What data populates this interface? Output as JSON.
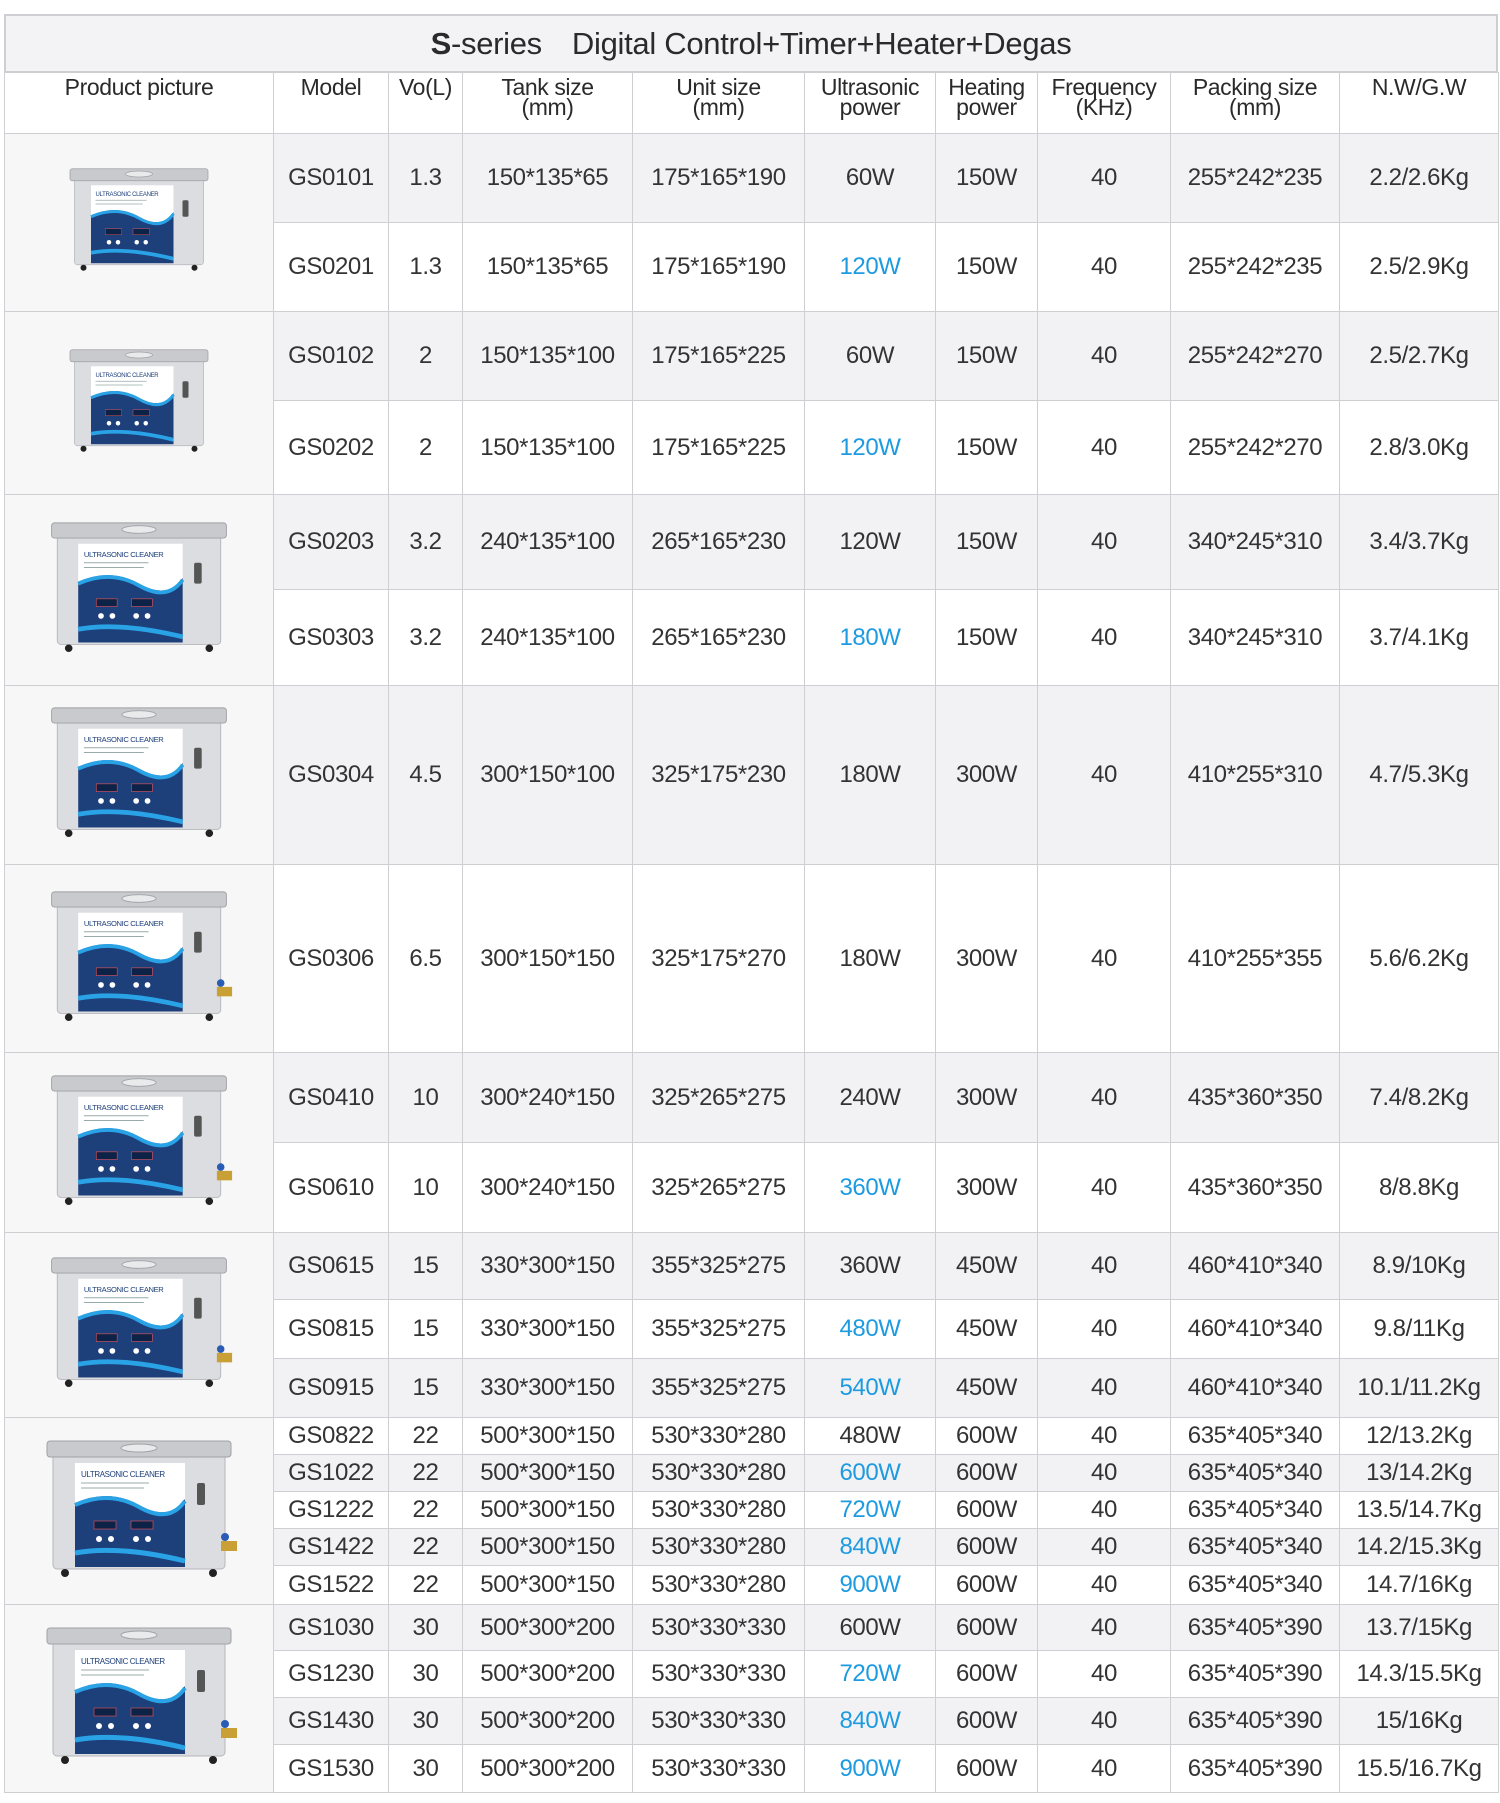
{
  "title": {
    "bold": "S",
    "rest": "-series",
    "subtitle": "Digital Control+Timer+Heater+Degas"
  },
  "headers": [
    {
      "l1": "Product picture",
      "l2": ""
    },
    {
      "l1": "Model",
      "l2": ""
    },
    {
      "l1": "Vo(L)",
      "l2": ""
    },
    {
      "l1": "Tank size",
      "l2": "(mm)"
    },
    {
      "l1": "Unit size",
      "l2": "(mm)"
    },
    {
      "l1": "Ultrasonic",
      "l2": "power"
    },
    {
      "l1": "Heating",
      "l2": "power"
    },
    {
      "l1": "Frequency",
      "l2": "(KHz)"
    },
    {
      "l1": "Packing size",
      "l2": "(mm)"
    },
    {
      "l1": "N.W/G.W",
      "l2": ""
    }
  ],
  "highlight_color": "#1e9be0",
  "product_image_label": "ULTRASONIC CLEANER",
  "groups": [
    {
      "rows": [
        {
          "model": "GS0101",
          "vol": "1.3",
          "tank": "150*135*65",
          "unit": "175*165*190",
          "power": "60W",
          "highlight": false,
          "heat": "150W",
          "freq": "40",
          "pack": "255*242*235",
          "weight": "2.2/2.6Kg"
        },
        {
          "model": "GS0201",
          "vol": "1.3",
          "tank": "150*135*65",
          "unit": "175*165*190",
          "power": "120W",
          "highlight": true,
          "heat": "150W",
          "freq": "40",
          "pack": "255*242*235",
          "weight": "2.5/2.9Kg"
        }
      ]
    },
    {
      "rows": [
        {
          "model": "GS0102",
          "vol": "2",
          "tank": "150*135*100",
          "unit": "175*165*225",
          "power": "60W",
          "highlight": false,
          "heat": "150W",
          "freq": "40",
          "pack": "255*242*270",
          "weight": "2.5/2.7Kg"
        },
        {
          "model": "GS0202",
          "vol": "2",
          "tank": "150*135*100",
          "unit": "175*165*225",
          "power": "120W",
          "highlight": true,
          "heat": "150W",
          "freq": "40",
          "pack": "255*242*270",
          "weight": "2.8/3.0Kg"
        }
      ]
    },
    {
      "rows": [
        {
          "model": "GS0203",
          "vol": "3.2",
          "tank": "240*135*100",
          "unit": "265*165*230",
          "power": "120W",
          "highlight": false,
          "heat": "150W",
          "freq": "40",
          "pack": "340*245*310",
          "weight": "3.4/3.7Kg"
        },
        {
          "model": "GS0303",
          "vol": "3.2",
          "tank": "240*135*100",
          "unit": "265*165*230",
          "power": "180W",
          "highlight": true,
          "heat": "150W",
          "freq": "40",
          "pack": "340*245*310",
          "weight": "3.7/4.1Kg"
        }
      ]
    },
    {
      "rows": [
        {
          "model": "GS0304",
          "vol": "4.5",
          "tank": "300*150*100",
          "unit": "325*175*230",
          "power": "180W",
          "highlight": false,
          "heat": "300W",
          "freq": "40",
          "pack": "410*255*310",
          "weight": "4.7/5.3Kg"
        }
      ]
    },
    {
      "rows": [
        {
          "model": "GS0306",
          "vol": "6.5",
          "tank": "300*150*150",
          "unit": "325*175*270",
          "power": "180W",
          "highlight": false,
          "heat": "300W",
          "freq": "40",
          "pack": "410*255*355",
          "weight": "5.6/6.2Kg"
        }
      ]
    },
    {
      "rows": [
        {
          "model": "GS0410",
          "vol": "10",
          "tank": "300*240*150",
          "unit": "325*265*275",
          "power": "240W",
          "highlight": false,
          "heat": "300W",
          "freq": "40",
          "pack": "435*360*350",
          "weight": "7.4/8.2Kg"
        },
        {
          "model": "GS0610",
          "vol": "10",
          "tank": "300*240*150",
          "unit": "325*265*275",
          "power": "360W",
          "highlight": true,
          "heat": "300W",
          "freq": "40",
          "pack": "435*360*350",
          "weight": "8/8.8Kg"
        }
      ]
    },
    {
      "rows": [
        {
          "model": "GS0615",
          "vol": "15",
          "tank": "330*300*150",
          "unit": "355*325*275",
          "power": "360W",
          "highlight": false,
          "heat": "450W",
          "freq": "40",
          "pack": "460*410*340",
          "weight": "8.9/10Kg"
        },
        {
          "model": "GS0815",
          "vol": "15",
          "tank": "330*300*150",
          "unit": "355*325*275",
          "power": "480W",
          "highlight": true,
          "heat": "450W",
          "freq": "40",
          "pack": "460*410*340",
          "weight": "9.8/11Kg"
        },
        {
          "model": "GS0915",
          "vol": "15",
          "tank": "330*300*150",
          "unit": "355*325*275",
          "power": "540W",
          "highlight": true,
          "heat": "450W",
          "freq": "40",
          "pack": "460*410*340",
          "weight": "10.1/11.2Kg"
        }
      ]
    },
    {
      "rows": [
        {
          "model": "GS0822",
          "vol": "22",
          "tank": "500*300*150",
          "unit": "530*330*280",
          "power": "480W",
          "highlight": false,
          "heat": "600W",
          "freq": "40",
          "pack": "635*405*340",
          "weight": "12/13.2Kg"
        },
        {
          "model": "GS1022",
          "vol": "22",
          "tank": "500*300*150",
          "unit": "530*330*280",
          "power": "600W",
          "highlight": true,
          "heat": "600W",
          "freq": "40",
          "pack": "635*405*340",
          "weight": "13/14.2Kg"
        },
        {
          "model": "GS1222",
          "vol": "22",
          "tank": "500*300*150",
          "unit": "530*330*280",
          "power": "720W",
          "highlight": true,
          "heat": "600W",
          "freq": "40",
          "pack": "635*405*340",
          "weight": "13.5/14.7Kg"
        },
        {
          "model": "GS1422",
          "vol": "22",
          "tank": "500*300*150",
          "unit": "530*330*280",
          "power": "840W",
          "highlight": true,
          "heat": "600W",
          "freq": "40",
          "pack": "635*405*340",
          "weight": "14.2/15.3Kg"
        },
        {
          "model": "GS1522",
          "vol": "22",
          "tank": "500*300*150",
          "unit": "530*330*280",
          "power": "900W",
          "highlight": true,
          "heat": "600W",
          "freq": "40",
          "pack": "635*405*340",
          "weight": "14.7/16Kg"
        }
      ]
    },
    {
      "rows": [
        {
          "model": "GS1030",
          "vol": "30",
          "tank": "500*300*200",
          "unit": "530*330*330",
          "power": "600W",
          "highlight": false,
          "heat": "600W",
          "freq": "40",
          "pack": "635*405*390",
          "weight": "13.7/15Kg"
        },
        {
          "model": "GS1230",
          "vol": "30",
          "tank": "500*300*200",
          "unit": "530*330*330",
          "power": "720W",
          "highlight": true,
          "heat": "600W",
          "freq": "40",
          "pack": "635*405*390",
          "weight": "14.3/15.5Kg"
        },
        {
          "model": "GS1430",
          "vol": "30",
          "tank": "500*300*200",
          "unit": "530*330*330",
          "power": "840W",
          "highlight": true,
          "heat": "600W",
          "freq": "40",
          "pack": "635*405*390",
          "weight": "15/16Kg"
        },
        {
          "model": "GS1530",
          "vol": "30",
          "tank": "500*300*200",
          "unit": "530*330*330",
          "power": "900W",
          "highlight": true,
          "heat": "600W",
          "freq": "40",
          "pack": "635*405*390",
          "weight": "15.5/16.7Kg"
        }
      ]
    }
  ]
}
